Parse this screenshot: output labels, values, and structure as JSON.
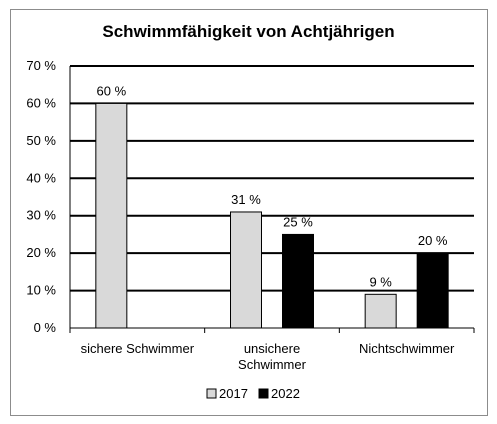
{
  "chart_data": {
    "type": "bar",
    "title": "Schwimmfähigkeit von Achtjährigen",
    "categories": [
      [
        "sichere Schwimmer"
      ],
      [
        "unsichere",
        "Schwimmer"
      ],
      [
        "Nichtschwimmer"
      ]
    ],
    "series": [
      {
        "name": "2017",
        "values": [
          60,
          31,
          9
        ],
        "labels": [
          "60 %",
          "31 %",
          "9 %"
        ],
        "color": "#d9d9d9"
      },
      {
        "name": "2022",
        "values": [
          null,
          25,
          20
        ],
        "labels": [
          null,
          "25 %",
          "20 %"
        ],
        "color": "#000000"
      }
    ],
    "yticks": [
      {
        "value": 0,
        "label": "0 %"
      },
      {
        "value": 10,
        "label": "10 %"
      },
      {
        "value": 20,
        "label": "20 %"
      },
      {
        "value": 30,
        "label": "30 %"
      },
      {
        "value": 40,
        "label": "40 %"
      },
      {
        "value": 50,
        "label": "50 %"
      },
      {
        "value": 60,
        "label": "60 %"
      },
      {
        "value": 70,
        "label": "70 %"
      }
    ],
    "ylim": [
      0,
      70
    ],
    "grid": true,
    "legend": "bottom"
  }
}
